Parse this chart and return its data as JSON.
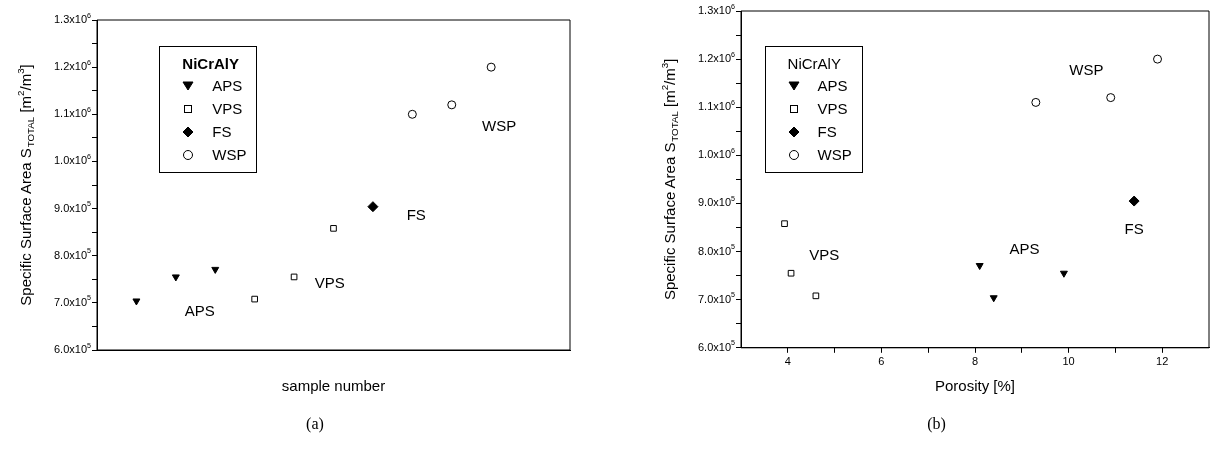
{
  "chart_data": [
    {
      "type": "scatter",
      "xlabel": "sample number",
      "ylabel": "Specific Surface Area S$_{TOTAL}$ [m$^{2}$/m$^{3}$]",
      "legend_title": "NiCrAlY",
      "legend": "top left",
      "tick_labels": "y",
      "categories": [
        null,
        null,
        null,
        null,
        null,
        null,
        null,
        null,
        null,
        null,
        null,
        null,
        null
      ],
      "ylim": [
        600000,
        1300000
      ],
      "yticks": [
        {
          "value": 600000,
          "label": "6.0x10$^{5}$"
        },
        {
          "value": 650000,
          "label": null
        },
        {
          "value": 700000,
          "label": "7.0x10$^{5}$"
        },
        {
          "value": 750000,
          "label": null
        },
        {
          "value": 800000,
          "label": "8.0x10$^{5}$"
        },
        {
          "value": 850000,
          "label": null
        },
        {
          "value": 900000,
          "label": "9.0x10$^{5}$"
        },
        {
          "value": 950000,
          "label": null
        },
        {
          "value": 1000000,
          "label": "1.0x10$^{6}$"
        },
        {
          "value": 1050000,
          "label": null
        },
        {
          "value": 1100000,
          "label": "1.1x10$^{6}$"
        },
        {
          "value": 1150000,
          "label": null
        },
        {
          "value": 1200000,
          "label": "1.2x10$^{6}$"
        },
        {
          "value": 1250000,
          "label": null
        },
        {
          "value": 1300000,
          "label": "1.3x10$^{6}$"
        }
      ],
      "series": [
        {
          "name": "APS",
          "color": "#000000",
          "marker": "triangle",
          "values": [
            null,
            704000,
            755000,
            771000,
            null,
            null,
            null,
            null,
            null,
            null,
            null,
            null,
            null
          ]
        },
        {
          "name": "VPS",
          "color": "#000000",
          "marker": "square",
          "values": [
            null,
            null,
            null,
            null,
            708000,
            755000,
            858000,
            null,
            null,
            null,
            null,
            null,
            null
          ]
        },
        {
          "name": "FS",
          "color": "#000000",
          "marker": "diamond",
          "values": [
            null,
            null,
            null,
            null,
            null,
            null,
            null,
            904000,
            null,
            null,
            null,
            null,
            null
          ]
        },
        {
          "name": "WSP",
          "color": "#000000",
          "marker": "circle",
          "values": [
            null,
            null,
            null,
            null,
            null,
            null,
            null,
            null,
            1100000,
            1120000,
            1200000,
            null,
            null
          ]
        }
      ],
      "annotations": [
        "APS",
        "VPS",
        "FS",
        "WSP",
        "(a)"
      ]
    },
    {
      "type": "scatter",
      "xlabel": "Porosity [%]",
      "ylabel": "Specific Surface Area S$_{TOTAL}$ [m$^{2}$/m$^{3}$]",
      "legend_title": "NiCrAlY",
      "legend": "top left",
      "xlim": [
        3,
        13
      ],
      "xticks": [
        4,
        {
          "value": 5,
          "label": null
        },
        6,
        {
          "value": 7,
          "label": null
        },
        8,
        {
          "value": 9,
          "label": null
        },
        10,
        {
          "value": 11,
          "label": null
        },
        12
      ],
      "ylim": [
        600000,
        1300000
      ],
      "yticks": [
        {
          "value": 600000,
          "label": "6.0x10$^{5}$"
        },
        {
          "value": 650000,
          "label": null
        },
        {
          "value": 700000,
          "label": "7.0x10$^{5}$"
        },
        {
          "value": 750000,
          "label": null
        },
        {
          "value": 800000,
          "label": "8.0x10$^{5}$"
        },
        {
          "value": 850000,
          "label": null
        },
        {
          "value": 900000,
          "label": "9.0x10$^{5}$"
        },
        {
          "value": 950000,
          "label": null
        },
        {
          "value": 1000000,
          "label": "1.0x10$^{6}$"
        },
        {
          "value": 1050000,
          "label": null
        },
        {
          "value": 1100000,
          "label": "1.1x10$^{6}$"
        },
        {
          "value": 1150000,
          "label": null
        },
        {
          "value": 1200000,
          "label": "1.2x10$^{6}$"
        },
        {
          "value": 1250000,
          "label": null
        },
        {
          "value": 1300000,
          "label": "1.3x10$^{6}$"
        }
      ],
      "series": [
        {
          "name": "APS",
          "color": "#000000",
          "marker": "triangle",
          "x": [
            8.1,
            8.4,
            9.9
          ],
          "values": [
            771000,
            704000,
            755000
          ]
        },
        {
          "name": "VPS",
          "color": "#000000",
          "marker": "square",
          "x": [
            3.93,
            4.07,
            4.6
          ],
          "values": [
            858000,
            755000,
            708000
          ]
        },
        {
          "name": "FS",
          "color": "#000000",
          "marker": "diamond",
          "x": [
            11.4
          ],
          "values": [
            905000
          ]
        },
        {
          "name": "WSP",
          "color": "#000000",
          "marker": "circle",
          "x": [
            9.3,
            10.9,
            11.9
          ],
          "values": [
            1110000,
            1120000,
            1200000
          ]
        }
      ],
      "annotations": [
        "APS",
        "VPS",
        "FS",
        "WSP",
        "(b)"
      ]
    }
  ]
}
